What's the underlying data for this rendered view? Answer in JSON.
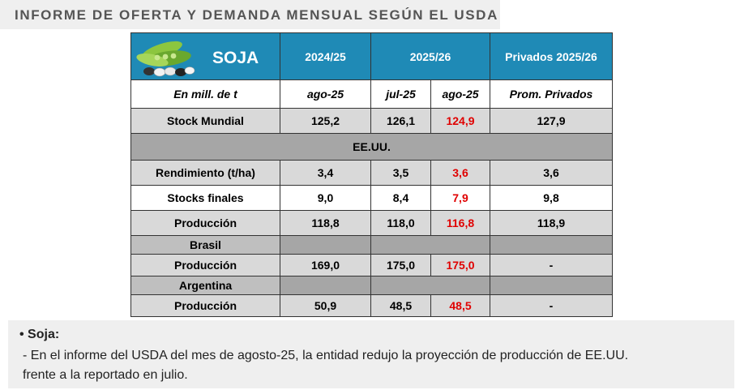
{
  "title": "INFORME DE OFERTA Y DEMANDA MENSUAL SEGÚN EL USDA",
  "table": {
    "crop": "SOJA",
    "col_2024": "2024/25",
    "col_2025": "2025/26",
    "col_priv": "Privados 2025/26",
    "sub_unit": "En mill. de t",
    "sub_ago25a": "ago-25",
    "sub_jul25": "jul-25",
    "sub_ago25b": "ago-25",
    "sub_priv": "Prom. Privados",
    "stock_mundial": {
      "label": "Stock Mundial",
      "v1": "125,2",
      "v2": "126,1",
      "v3": "124,9",
      "v4": "127,9"
    },
    "eeuu": "EE.UU.",
    "rendimiento": {
      "label": "Rendimiento (t/ha)",
      "v1": "3,4",
      "v2": "3,5",
      "v3": "3,6",
      "v4": "3,6"
    },
    "stocks_finales": {
      "label": "Stocks finales",
      "v1": "9,0",
      "v2": "8,4",
      "v3": "7,9",
      "v4": "9,8"
    },
    "prod_eeuu": {
      "label": "Producción",
      "v1": "118,8",
      "v2": "118,0",
      "v3": "116,8",
      "v4": "118,9"
    },
    "brasil": "Brasil",
    "prod_brasil": {
      "label": "Producción",
      "v1": "169,0",
      "v2": "175,0",
      "v3": "175,0",
      "v4": "-"
    },
    "argentina": "Argentina",
    "prod_arg": {
      "label": "Producción",
      "v1": "50,9",
      "v2": "48,5",
      "v3": "48,5",
      "v4": "-"
    }
  },
  "note": {
    "bullet": "•  Soja:",
    "line1": "- En el informe del USDA del mes de agosto-25, la entidad redujo la proyección de producción de EE.UU.",
    "line2": "frente a la reportado en julio."
  },
  "colors": {
    "header": "#1f8ab6",
    "highlight": "#e00000",
    "section": "#a6a6a6",
    "row_gray": "#d9d9d9"
  }
}
